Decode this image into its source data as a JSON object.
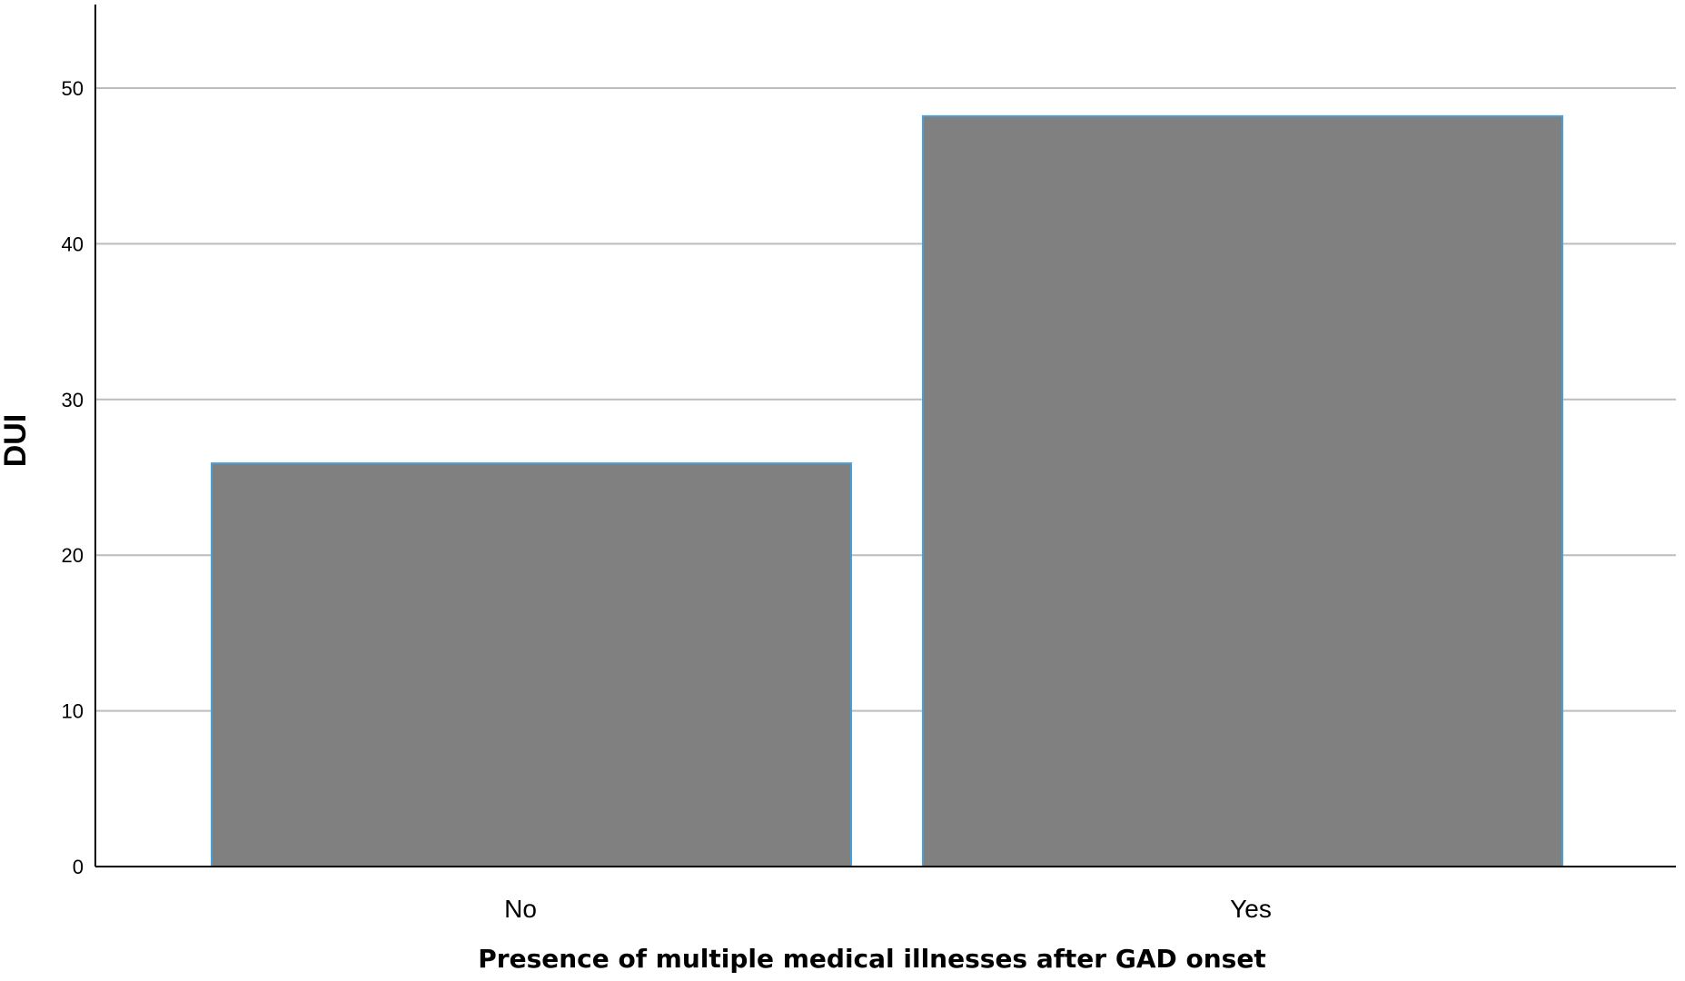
{
  "chart_data": {
    "type": "bar",
    "title": "",
    "categories": [
      "No",
      "Yes"
    ],
    "values": [
      25.9,
      48.2
    ],
    "xlabel": "Presence of multiple medical illnesses after GAD onset",
    "ylabel": "DUI",
    "ylim": [
      0,
      55
    ],
    "yticks": [
      0,
      10,
      20,
      30,
      40,
      50
    ],
    "grid": true,
    "legend": "none",
    "colors": {
      "bar": "#808080",
      "bar_edge": "#4a9fd8",
      "grid": "#bdbdbd",
      "axis": "#000000"
    }
  }
}
